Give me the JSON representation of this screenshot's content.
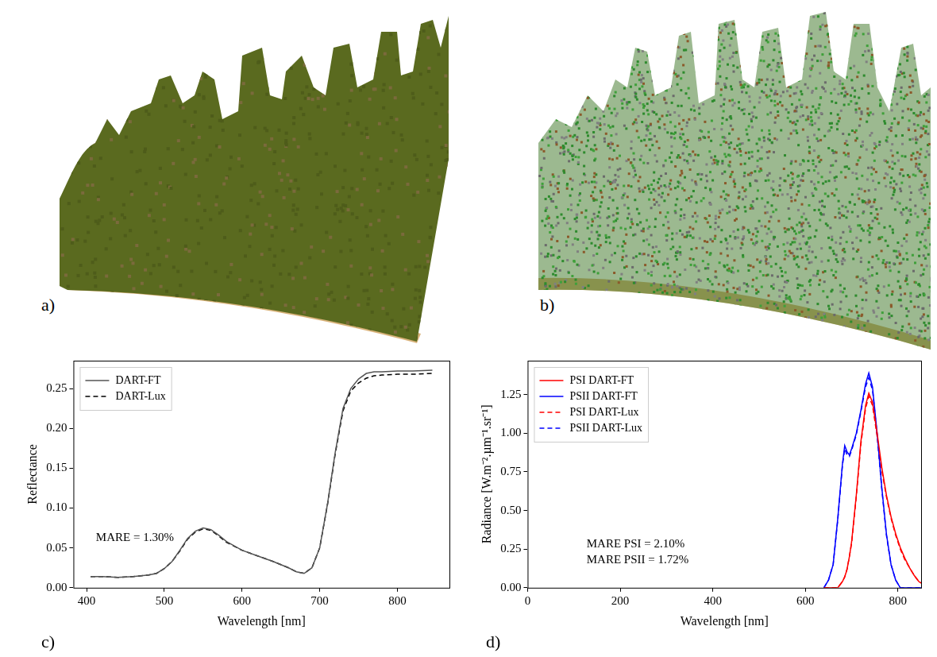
{
  "panels": [
    {
      "label": "a)"
    },
    {
      "label": "b)"
    }
  ],
  "chart_data": [
    {
      "panel": "c)",
      "type": "line",
      "x_label": "Wavelength [nm]",
      "y_label": "Reflectance",
      "x": [
        405,
        420,
        440,
        460,
        480,
        490,
        500,
        510,
        520,
        530,
        540,
        550,
        560,
        570,
        580,
        600,
        620,
        640,
        660,
        670,
        680,
        690,
        700,
        710,
        720,
        730,
        740,
        750,
        760,
        770,
        780,
        800,
        820,
        845
      ],
      "series": [
        {
          "name": "DART-FT",
          "color": "#555555",
          "line_style": "solid",
          "values": [
            0.014,
            0.014,
            0.013,
            0.014,
            0.016,
            0.018,
            0.024,
            0.033,
            0.047,
            0.062,
            0.071,
            0.075,
            0.073,
            0.066,
            0.058,
            0.047,
            0.04,
            0.033,
            0.025,
            0.02,
            0.018,
            0.025,
            0.05,
            0.105,
            0.17,
            0.225,
            0.25,
            0.262,
            0.269,
            0.271,
            0.271,
            0.272,
            0.272,
            0.273
          ]
        },
        {
          "name": "DART-Lux",
          "color": "#000000",
          "line_style": "dashed",
          "values": [
            0.014,
            0.014,
            0.013,
            0.014,
            0.016,
            0.018,
            0.024,
            0.033,
            0.046,
            0.061,
            0.07,
            0.074,
            0.072,
            0.065,
            0.057,
            0.047,
            0.04,
            0.033,
            0.025,
            0.02,
            0.018,
            0.025,
            0.05,
            0.104,
            0.168,
            0.222,
            0.247,
            0.257,
            0.263,
            0.266,
            0.267,
            0.268,
            0.268,
            0.269
          ]
        }
      ],
      "xlim": [
        383,
        867
      ],
      "xticks": [
        400,
        500,
        600,
        700,
        800
      ],
      "ylim": [
        0,
        0.285
      ],
      "yticks": [
        {
          "value": 0,
          "label": "0.00"
        },
        {
          "value": 0.05,
          "label": "0.05"
        },
        {
          "value": 0.1,
          "label": "0.10"
        },
        {
          "value": 0.15,
          "label": "0.15"
        },
        {
          "value": 0.2,
          "label": "0.20"
        },
        {
          "value": 0.25,
          "label": "0.25"
        }
      ],
      "legend": "upper left",
      "grid": false,
      "annotations": [
        "MARE = 1.30%"
      ]
    },
    {
      "panel": "d)",
      "type": "line",
      "x_label": "Wavelength [nm]",
      "y_label": "Radiance [W.m⁻².µm⁻¹.sr⁻¹]",
      "x": [
        640,
        650,
        660,
        670,
        680,
        685,
        690,
        695,
        700,
        710,
        720,
        730,
        737,
        745,
        755,
        765,
        775,
        785,
        795,
        805,
        815,
        825,
        835,
        845,
        850
      ],
      "series": [
        {
          "name": "PSI DART-FT",
          "color": "#ff0000",
          "line_style": "solid",
          "values": [
            0,
            0,
            0,
            0,
            0.04,
            0.07,
            0.12,
            0.2,
            0.3,
            0.6,
            0.95,
            1.18,
            1.26,
            1.2,
            1.0,
            0.78,
            0.6,
            0.46,
            0.35,
            0.26,
            0.19,
            0.13,
            0.08,
            0.04,
            0.03
          ]
        },
        {
          "name": "PSII DART-FT",
          "color": "#0000ff",
          "line_style": "solid",
          "values": [
            0,
            0.05,
            0.15,
            0.45,
            0.8,
            0.92,
            0.88,
            0.86,
            0.9,
            1.0,
            1.15,
            1.32,
            1.39,
            1.3,
            1.0,
            0.65,
            0.35,
            0.15,
            0.05,
            0,
            0,
            0,
            0,
            0,
            0
          ]
        },
        {
          "name": "PSI DART-Lux",
          "color": "#ff0000",
          "line_style": "dashed",
          "values": [
            0,
            0,
            0,
            0,
            0.04,
            0.07,
            0.12,
            0.2,
            0.29,
            0.59,
            0.93,
            1.16,
            1.24,
            1.18,
            0.98,
            0.76,
            0.59,
            0.45,
            0.34,
            0.25,
            0.18,
            0.13,
            0.08,
            0.04,
            0.03
          ]
        },
        {
          "name": "PSII DART-Lux",
          "color": "#0000ff",
          "line_style": "dashed",
          "values": [
            0,
            0.05,
            0.15,
            0.44,
            0.79,
            0.9,
            0.86,
            0.85,
            0.89,
            0.99,
            1.14,
            1.3,
            1.36,
            1.28,
            0.99,
            0.64,
            0.34,
            0.15,
            0.05,
            0,
            0,
            0,
            0,
            0,
            0
          ]
        }
      ],
      "xlim": [
        0,
        850
      ],
      "xticks": [
        0,
        200,
        400,
        600,
        800
      ],
      "ylim": [
        0,
        1.47
      ],
      "yticks": [
        {
          "value": 0,
          "label": "0.00"
        },
        {
          "value": 0.25,
          "label": "0.25"
        },
        {
          "value": 0.5,
          "label": "0.50"
        },
        {
          "value": 0.75,
          "label": "0.75"
        },
        {
          "value": 1,
          "label": "1.00"
        },
        {
          "value": 1.25,
          "label": "1.25"
        }
      ],
      "legend": "upper left",
      "grid": false,
      "annotations": [
        "MARE PSI = 2.10%",
        "MARE PSII = 1.72%"
      ]
    }
  ]
}
